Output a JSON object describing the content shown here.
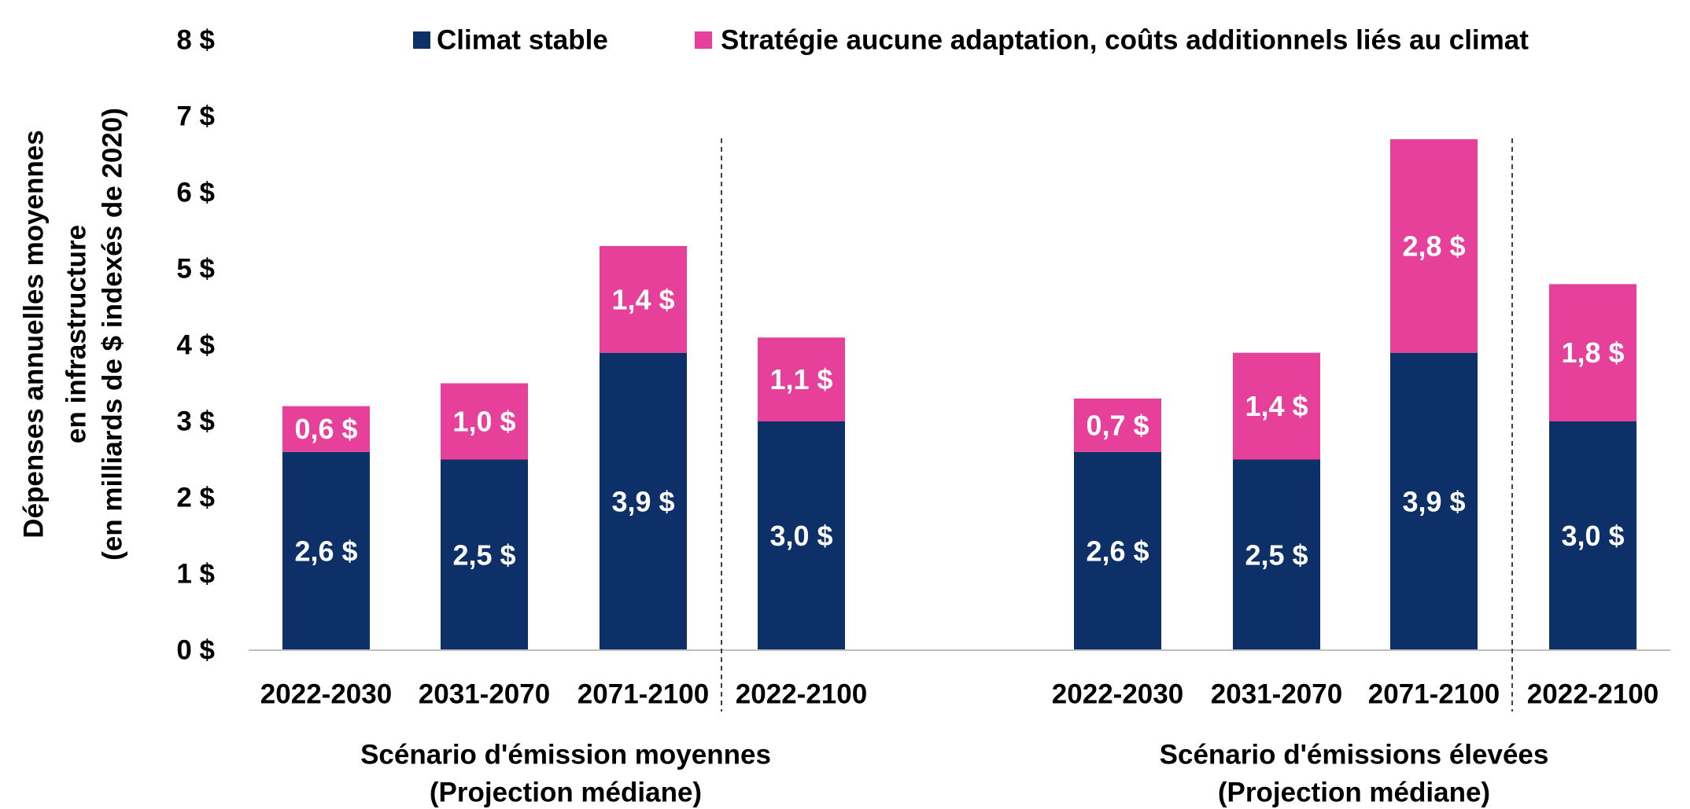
{
  "chart_data": {
    "type": "bar",
    "stacked": true,
    "categories": [
      "2022-2030",
      "2031-2070",
      "2071-2100",
      "2022-2100",
      "2022-2030",
      "2031-2070",
      "2071-2100",
      "2022-2100"
    ],
    "groups": [
      {
        "label_lines": [
          "Scénario d'émission moyennes",
          "(Projection médiane)"
        ]
      },
      {
        "label_lines": [
          "Scénario d'émissions élevées",
          "(Projection médiane)"
        ]
      }
    ],
    "ylabel_lines": [
      "Dépenses annuelles moyennes",
      "en infrastructure",
      "(en milliards de $ indexés de 2020)"
    ],
    "yticks": [
      0,
      1,
      2,
      3,
      4,
      5,
      6,
      7,
      8
    ],
    "ytick_labels": [
      "0 $",
      "1 $",
      "2 $",
      "3 $",
      "4 $",
      "5 $",
      "6 $",
      "7 $",
      "8 $"
    ],
    "ylim": [
      0,
      8
    ],
    "grid": false,
    "legend_position": "top",
    "series": [
      {
        "name": "Climat stable",
        "color": "#0d3068",
        "values": [
          2.6,
          2.5,
          3.9,
          3.0,
          2.6,
          2.5,
          3.9,
          3.0
        ],
        "labels": [
          "2,6 $",
          "2,5 $",
          "3,9 $",
          "3,0 $",
          "2,6 $",
          "2,5 $",
          "3,9 $",
          "3,0 $"
        ]
      },
      {
        "name": "Stratégie aucune adaptation, coûts additionnels liés au climat",
        "color": "#e6409a",
        "values": [
          0.6,
          1.0,
          1.4,
          1.1,
          0.7,
          1.4,
          2.8,
          1.8
        ],
        "labels": [
          "0,6 $",
          "1,0 $",
          "1,4 $",
          "1,1 $",
          "0,7 $",
          "1,4 $",
          "2,8 $",
          "1,8 $"
        ]
      }
    ]
  }
}
